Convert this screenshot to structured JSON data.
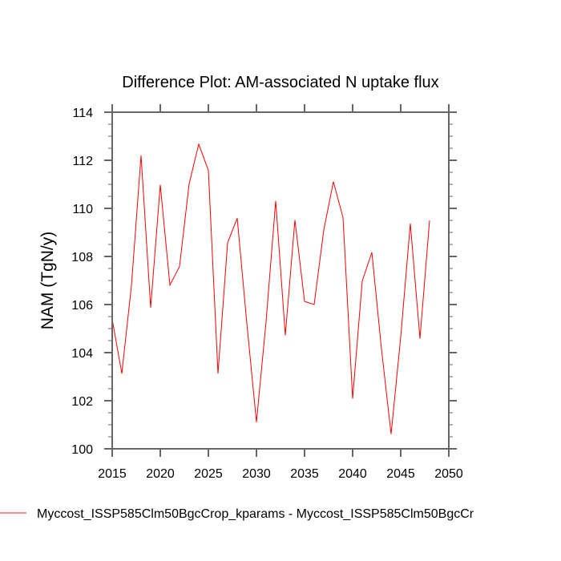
{
  "chart_data": {
    "type": "line",
    "title": "Difference Plot: AM-associated N uptake flux",
    "xlabel": "",
    "ylabel": "NAM  (TgN/y)",
    "xlim": [
      2015,
      2050
    ],
    "ylim": [
      100,
      114
    ],
    "x_ticks": [
      2015,
      2020,
      2025,
      2030,
      2035,
      2040,
      2045,
      2050
    ],
    "x_tick_labels": [
      "2015",
      "2020",
      "2025",
      "2030",
      "2035",
      "2040",
      "2045",
      "2050"
    ],
    "x_minor_step": 0,
    "y_ticks": [
      100,
      102,
      104,
      106,
      108,
      110,
      112,
      114
    ],
    "y_tick_labels": [
      "100",
      "102",
      "104",
      "106",
      "108",
      "110",
      "112",
      "114"
    ],
    "y_minor_step": 0.5,
    "grid": false,
    "legend_position": "bottom-left",
    "series": [
      {
        "name": "Myccost_ISSP585Clm50BgcCrop_kparams - Myccost_ISSP585Clm50BgcCr",
        "color": "#ff0000",
        "x": [
          2015,
          2016,
          2017,
          2018,
          2019,
          2020,
          2021,
          2022,
          2023,
          2024,
          2025,
          2026,
          2027,
          2028,
          2029,
          2030,
          2031,
          2032,
          2033,
          2034,
          2035,
          2036,
          2037,
          2038,
          2039,
          2040,
          2041,
          2042,
          2043,
          2044,
          2045,
          2046,
          2047,
          2048
        ],
        "values": [
          105.39,
          103.13,
          106.78,
          112.2,
          105.87,
          110.98,
          106.81,
          107.58,
          111.02,
          112.67,
          111.58,
          103.13,
          108.57,
          109.59,
          105.22,
          101.11,
          105.29,
          110.31,
          104.72,
          109.52,
          106.13,
          106.0,
          109.1,
          111.11,
          109.62,
          102.09,
          106.98,
          108.17,
          104.15,
          100.61,
          104.65,
          109.37,
          104.58,
          109.5
        ]
      }
    ]
  }
}
